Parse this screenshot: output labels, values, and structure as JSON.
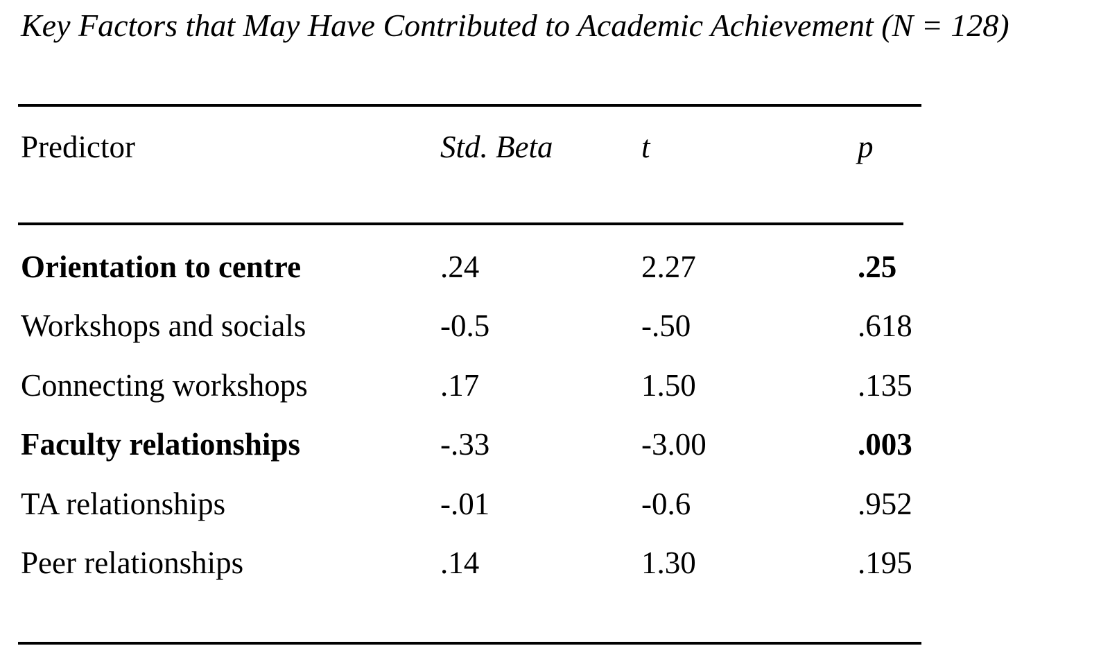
{
  "title": "Key Factors that May Have Contributed to Academic Achievement (N = 128)",
  "sample_size": "128",
  "colors": {
    "text": "#000000",
    "background": "#ffffff",
    "rule": "#000000"
  },
  "table": {
    "headers": {
      "predictor": "Predictor",
      "std_beta": "Std. Beta",
      "t": "t",
      "p": "p"
    },
    "rows": [
      {
        "predictor": "Orientation to centre",
        "std_beta": ".24",
        "t": "2.27",
        "p": ".25",
        "emphasized": true
      },
      {
        "predictor": "Workshops and socials",
        "std_beta": "-0.5",
        "t": "-.50",
        "p": ".618",
        "emphasized": false
      },
      {
        "predictor": "Connecting workshops",
        "std_beta": ".17",
        "t": "1.50",
        "p": ".135",
        "emphasized": false
      },
      {
        "predictor": "Faculty relationships",
        "std_beta": "-.33",
        "t": "-3.00",
        "p": ".003",
        "emphasized": true
      },
      {
        "predictor": "TA relationships",
        "std_beta": "-.01",
        "t": "-0.6",
        "p": ".952",
        "emphasized": false
      },
      {
        "predictor": "Peer relationships",
        "std_beta": ".14",
        "t": "1.30",
        "p": ".195",
        "emphasized": false
      }
    ]
  }
}
